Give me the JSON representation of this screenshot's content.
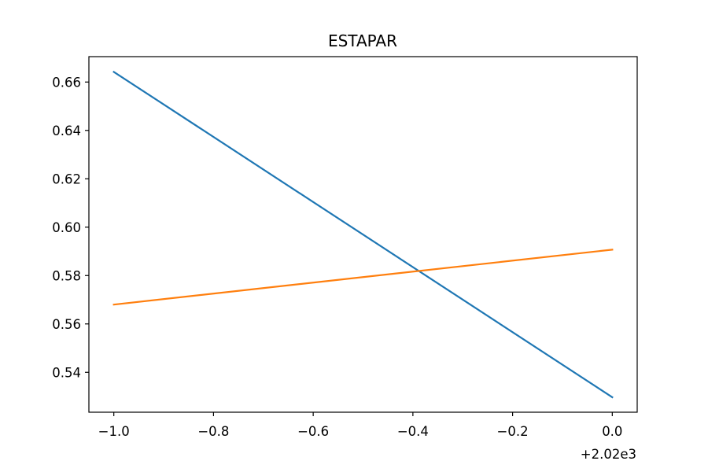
{
  "chart_data": {
    "type": "line",
    "title": "ESTAPAR",
    "xlabel": "",
    "ylabel": "",
    "x_offset_label": "+2.02e3",
    "xlim": [
      -1.05,
      0.05
    ],
    "ylim": [
      0.5235,
      0.6705
    ],
    "x_ticks": [
      -1.0,
      -0.8,
      -0.6,
      -0.4,
      -0.2,
      0.0
    ],
    "x_tick_labels": [
      "−1.0",
      "−0.8",
      "−0.6",
      "−0.4",
      "−0.2",
      "0.0"
    ],
    "y_ticks": [
      0.54,
      0.56,
      0.58,
      0.6,
      0.62,
      0.64,
      0.66
    ],
    "y_tick_labels": [
      "0.54",
      "0.56",
      "0.58",
      "0.60",
      "0.62",
      "0.64",
      "0.66"
    ],
    "grid": false,
    "x": [
      -1.0,
      0.0
    ],
    "series": [
      {
        "values": [
          0.6642,
          0.5297
        ],
        "color": "#1f77b4"
      },
      {
        "values": [
          0.568,
          0.5907
        ],
        "color": "#ff7f0e"
      }
    ]
  }
}
